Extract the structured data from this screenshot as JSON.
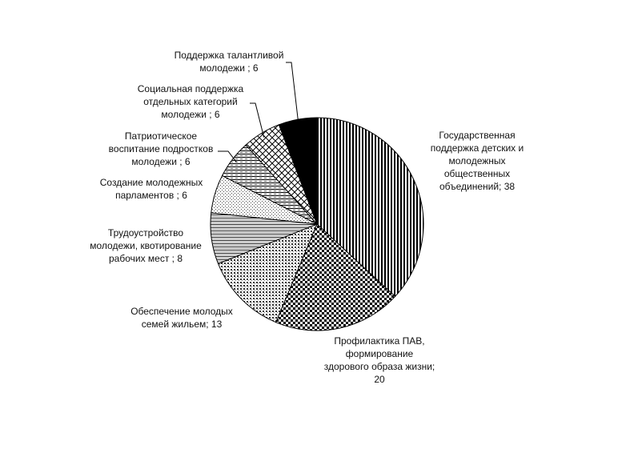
{
  "chart_data": {
    "type": "pie",
    "title": "",
    "series": [
      {
        "name": "",
        "slices": [
          {
            "label": [
              "Государственная",
              "поддержка детских и",
              "молодежных",
              "общественных",
              "объединений; 38"
            ],
            "value": 38,
            "pattern": "vstripes"
          },
          {
            "label": [
              "Профилактика ПАВ,",
              "формирование",
              "здорового образа жизни;",
              "20"
            ],
            "value": 20,
            "pattern": "checker"
          },
          {
            "label": [
              "Обеспечение молодых",
              "семей жильем; 13"
            ],
            "value": 13,
            "pattern": "dots-coarse"
          },
          {
            "label": [
              "Трудоустройство",
              "молодежи, квотирование",
              "рабочих мест ; 8"
            ],
            "value": 8,
            "pattern": "hlines"
          },
          {
            "label": [
              "Создание молодежных",
              "парламентов ; 6"
            ],
            "value": 6,
            "pattern": "dots-fine"
          },
          {
            "label": [
              "Патриотическое",
              "воспитание подростков",
              "молодежи ; 6"
            ],
            "value": 6,
            "pattern": "hlines-dense"
          },
          {
            "label": [
              "Социальная поддержка",
              "отдельных категорий",
              "молодежи ; 6"
            ],
            "value": 6,
            "pattern": "lattice"
          },
          {
            "label": [
              "Поддержка талантливой",
              "молодежи ; 6"
            ],
            "value": 6,
            "pattern": "solid"
          }
        ]
      }
    ],
    "legend": "none"
  }
}
